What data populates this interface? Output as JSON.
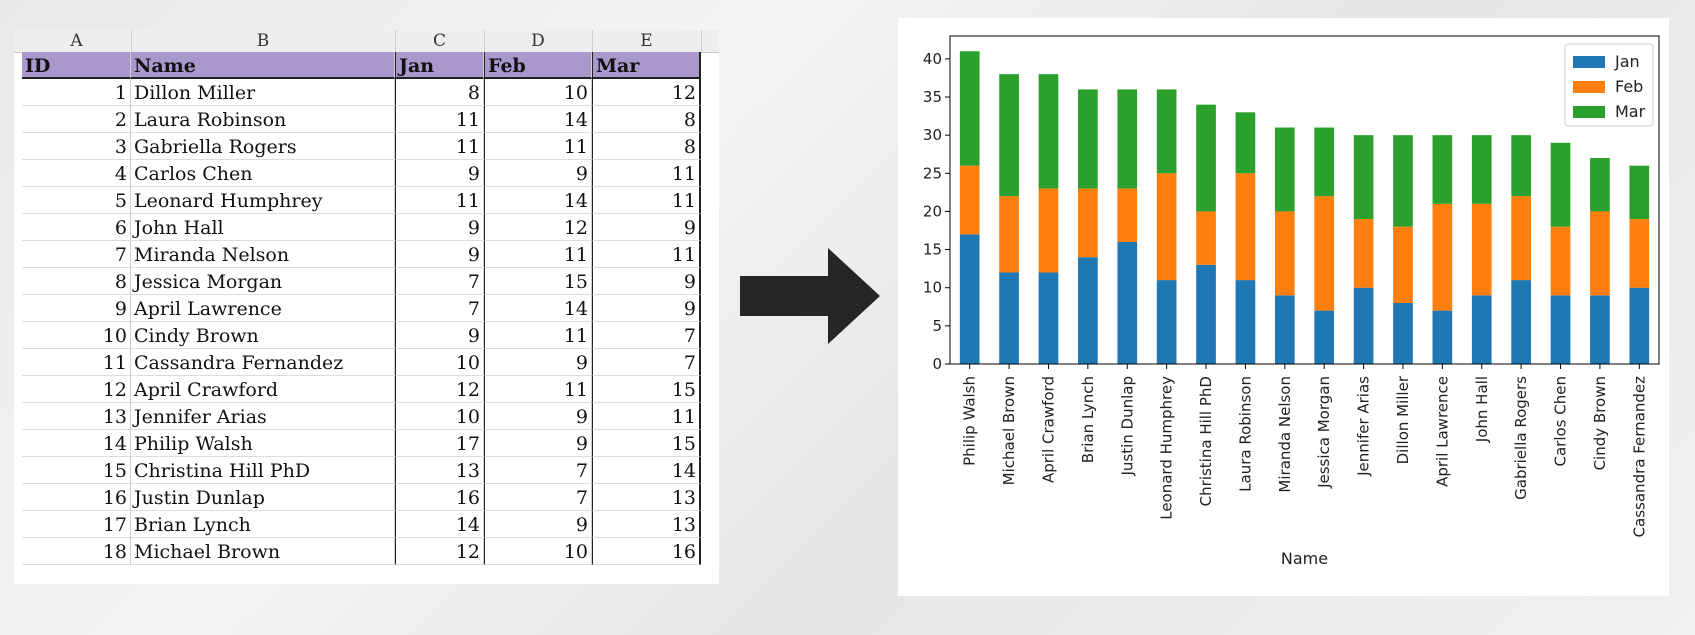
{
  "sheet": {
    "columns": [
      "A",
      "B",
      "C",
      "D",
      "E"
    ],
    "headers": [
      "ID",
      "Name",
      "Jan",
      "Feb",
      "Mar"
    ],
    "rows": [
      [
        "1",
        "Dillon Miller",
        "8",
        "10",
        "12"
      ],
      [
        "2",
        "Laura Robinson",
        "11",
        "14",
        "8"
      ],
      [
        "3",
        "Gabriella Rogers",
        "11",
        "11",
        "8"
      ],
      [
        "4",
        "Carlos Chen",
        "9",
        "9",
        "11"
      ],
      [
        "5",
        "Leonard Humphrey",
        "11",
        "14",
        "11"
      ],
      [
        "6",
        "John Hall",
        "9",
        "12",
        "9"
      ],
      [
        "7",
        "Miranda Nelson",
        "9",
        "11",
        "11"
      ],
      [
        "8",
        "Jessica Morgan",
        "7",
        "15",
        "9"
      ],
      [
        "9",
        "April Lawrence",
        "7",
        "14",
        "9"
      ],
      [
        "10",
        "Cindy Brown",
        "9",
        "11",
        "7"
      ],
      [
        "11",
        "Cassandra Fernandez",
        "10",
        "9",
        "7"
      ],
      [
        "12",
        "April Crawford",
        "12",
        "11",
        "15"
      ],
      [
        "13",
        "Jennifer Arias",
        "10",
        "9",
        "11"
      ],
      [
        "14",
        "Philip Walsh",
        "17",
        "9",
        "15"
      ],
      [
        "15",
        "Christina Hill PhD",
        "13",
        "7",
        "14"
      ],
      [
        "16",
        "Justin Dunlap",
        "16",
        "7",
        "13"
      ],
      [
        "17",
        "Brian Lynch",
        "14",
        "9",
        "13"
      ],
      [
        "18",
        "Michael Brown",
        "12",
        "10",
        "16"
      ]
    ]
  },
  "chart_data": {
    "type": "bar",
    "stacked": true,
    "title": "",
    "xlabel": "Name",
    "ylabel": "",
    "ylim": [
      0,
      43
    ],
    "yticks": [
      0,
      5,
      10,
      15,
      20,
      25,
      30,
      35,
      40
    ],
    "legend_position": "top-right",
    "grid": false,
    "categories": [
      "Philip Walsh",
      "Michael Brown",
      "April Crawford",
      "Brian Lynch",
      "Justin Dunlap",
      "Leonard Humphrey",
      "Christina Hill PhD",
      "Laura Robinson",
      "Miranda Nelson",
      "Jessica Morgan",
      "Jennifer Arias",
      "Dillon Miller",
      "April Lawrence",
      "John Hall",
      "Gabriella Rogers",
      "Carlos Chen",
      "Cindy Brown",
      "Cassandra Fernandez"
    ],
    "series": [
      {
        "name": "Jan",
        "color": "#1f77b4",
        "values": [
          17,
          12,
          12,
          14,
          16,
          11,
          13,
          11,
          9,
          7,
          10,
          8,
          7,
          9,
          11,
          9,
          9,
          10
        ]
      },
      {
        "name": "Feb",
        "color": "#ff7f0e",
        "values": [
          9,
          10,
          11,
          9,
          7,
          14,
          7,
          14,
          11,
          15,
          9,
          10,
          14,
          12,
          11,
          9,
          11,
          9
        ]
      },
      {
        "name": "Mar",
        "color": "#2ca02c",
        "values": [
          15,
          16,
          15,
          13,
          13,
          11,
          14,
          8,
          11,
          9,
          11,
          12,
          9,
          9,
          8,
          11,
          7,
          7
        ]
      }
    ]
  },
  "arrow": {
    "icon": "right-arrow-icon",
    "color": "#262626"
  }
}
